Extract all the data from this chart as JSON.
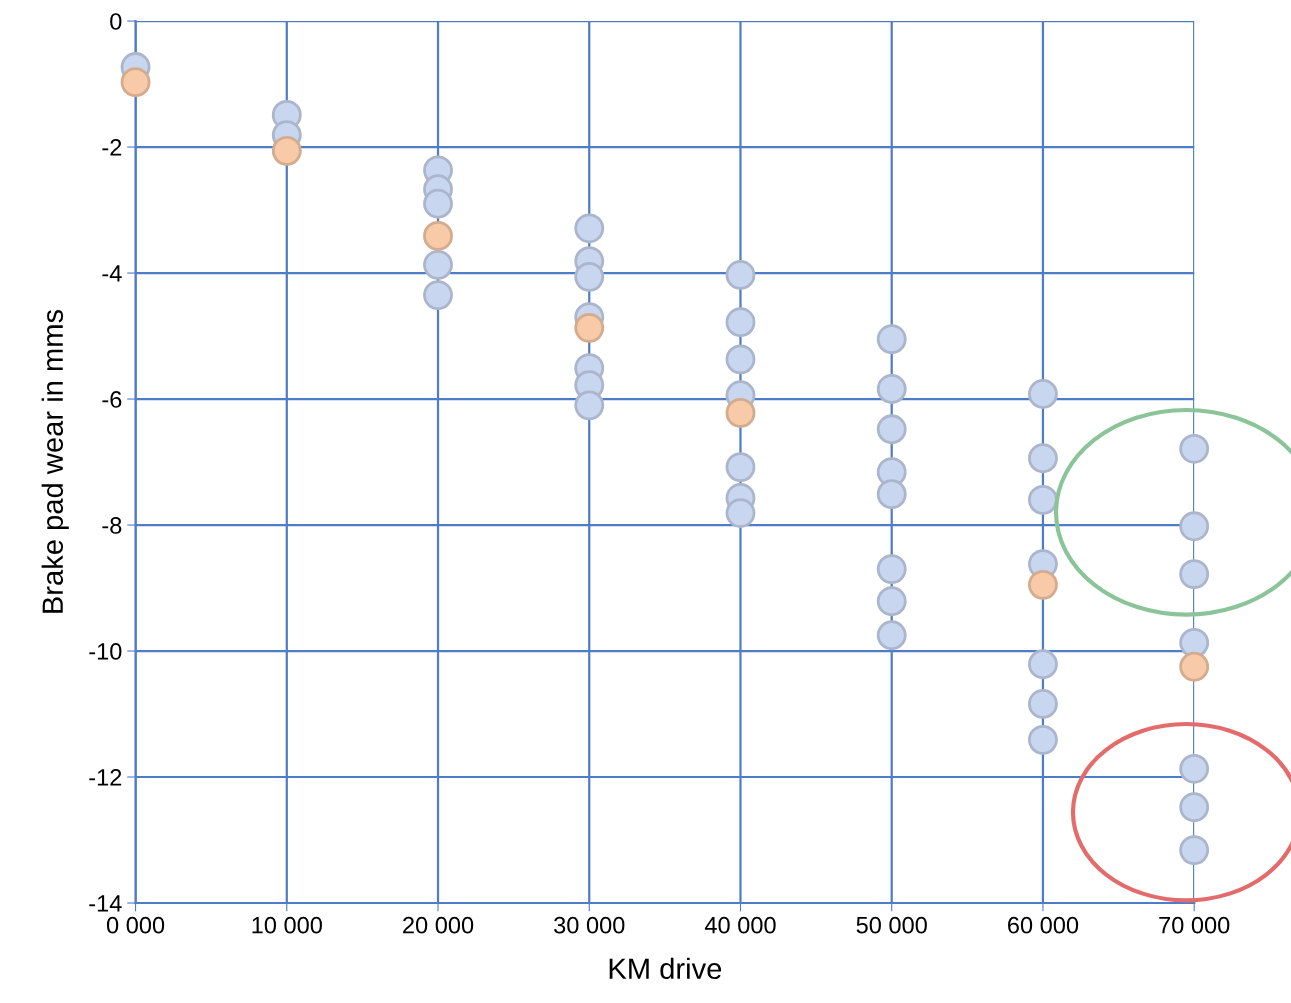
{
  "chart_data": {
    "type": "scatter",
    "xlabel": "KM drive",
    "ylabel": "Brake pad wear in mms",
    "xlim": [
      0,
      70000
    ],
    "ylim": [
      -14,
      0
    ],
    "xticks": [
      {
        "value": 0,
        "label": "0 000"
      },
      {
        "value": 10000,
        "label": "10 000"
      },
      {
        "value": 20000,
        "label": "20 000"
      },
      {
        "value": 30000,
        "label": "30 000"
      },
      {
        "value": 40000,
        "label": "40 000"
      },
      {
        "value": 50000,
        "label": "50 000"
      },
      {
        "value": 60000,
        "label": "60 000"
      },
      {
        "value": 70000,
        "label": "70 000"
      }
    ],
    "yticks": [
      0,
      {
        "value": -2,
        "label": "-2"
      },
      {
        "value": -4,
        "label": "-4"
      },
      {
        "value": -6,
        "label": "-6"
      },
      {
        "value": -8,
        "label": "-8"
      },
      {
        "value": -10,
        "label": "-10"
      },
      {
        "value": -12,
        "label": "-12"
      },
      {
        "value": -14,
        "label": "-14"
      }
    ],
    "grid": true,
    "marker": "circle",
    "series": [
      {
        "color": "#c9d6f0",
        "x": [
          0,
          10000,
          10000,
          20000,
          20000,
          20000,
          20000,
          20000,
          30000,
          30000,
          30000,
          30000,
          30000,
          30000,
          30000,
          40000,
          40000,
          40000,
          40000,
          40000,
          40000,
          40000,
          50000,
          50000,
          50000,
          50000,
          50000,
          50000,
          50000,
          50000,
          60000,
          60000,
          60000,
          60000,
          60000,
          60000,
          60000,
          70000,
          70000,
          70000,
          70000,
          70000,
          70000,
          70000
        ],
        "values": [
          -0.73,
          -1.49,
          -1.81,
          -2.37,
          -2.67,
          -2.9,
          -3.87,
          -4.35,
          -3.29,
          -3.81,
          -4.06,
          -4.7,
          -5.51,
          -5.78,
          -6.1,
          -4.03,
          -4.78,
          -5.37,
          -5.94,
          -7.08,
          -7.57,
          -7.81,
          -5.05,
          -5.84,
          -6.48,
          -7.16,
          -7.51,
          -8.7,
          -9.21,
          -9.75,
          -5.92,
          -6.94,
          -7.6,
          -8.62,
          -10.21,
          -10.84,
          -11.41,
          -6.79,
          -8.02,
          -8.78,
          -9.87,
          -11.87,
          -12.48,
          -13.16
        ]
      },
      {
        "color": "#f8caa8",
        "x": [
          0,
          10000,
          20000,
          30000,
          40000,
          60000,
          70000
        ],
        "values": [
          -0.97,
          -2.06,
          -3.41,
          -4.87,
          -6.22,
          -8.95,
          -10.25
        ]
      }
    ]
  }
}
